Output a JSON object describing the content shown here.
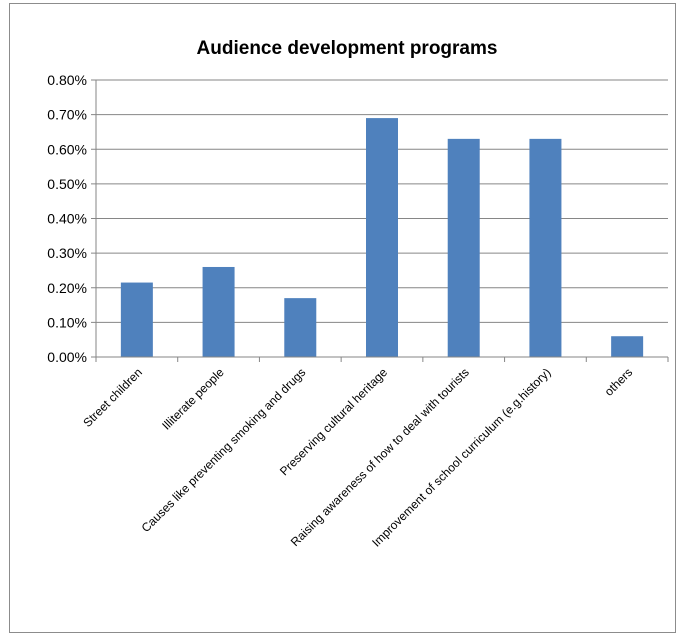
{
  "chart_data": {
    "type": "bar",
    "title": "Audience development programs",
    "xlabel": "",
    "ylabel": "",
    "categories": [
      "Street children",
      "Illiterate people",
      "Causes  like preventing smoking and drugs",
      "Preserving cultural heritage",
      "Raising awareness of how to deal with tourists",
      "Improvement of school curriculum (e.g.history)",
      "others"
    ],
    "values": [
      0.00215,
      0.0026,
      0.0017,
      0.0069,
      0.0063,
      0.0063,
      0.0006
    ],
    "ylim": [
      0,
      0.008
    ],
    "yticks": [
      "0.00%",
      "0.10%",
      "0.20%",
      "0.30%",
      "0.40%",
      "0.50%",
      "0.60%",
      "0.70%",
      "0.80%"
    ],
    "grid": true,
    "legend": "none",
    "bar_color": "#4f81bd",
    "grid_color": "#868686"
  }
}
